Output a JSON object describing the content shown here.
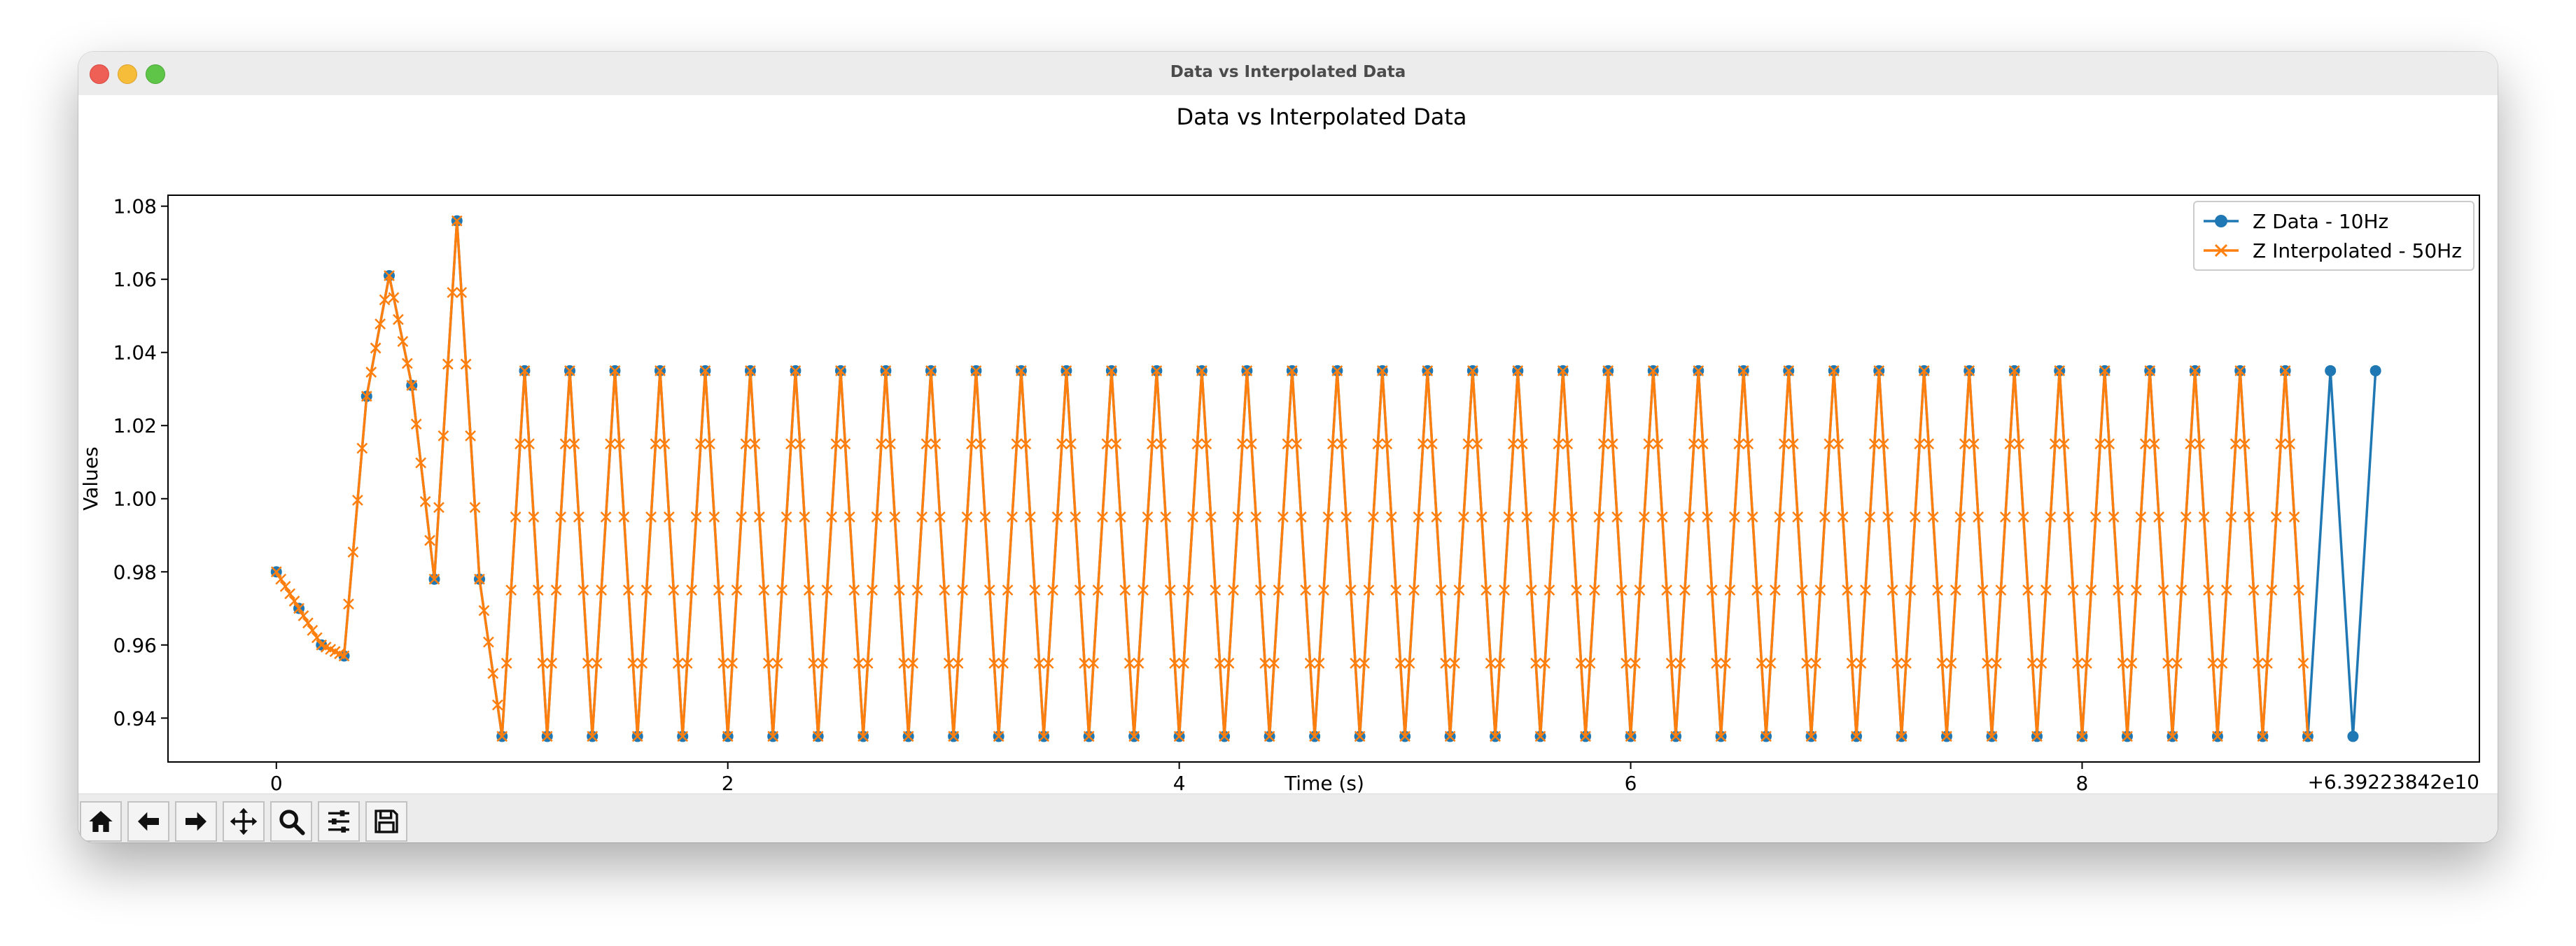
{
  "window": {
    "title": "Data vs Interpolated Data"
  },
  "toolbar": {
    "buttons": [
      {
        "name": "home-button",
        "icon": "home-icon"
      },
      {
        "name": "back-button",
        "icon": "arrow-left-icon"
      },
      {
        "name": "forward-button",
        "icon": "arrow-right-icon"
      },
      {
        "name": "pan-button",
        "icon": "move-icon"
      },
      {
        "name": "zoom-button",
        "icon": "magnifier-icon"
      },
      {
        "name": "configure-subplots-button",
        "icon": "sliders-icon"
      },
      {
        "name": "save-button",
        "icon": "floppy-disk-icon"
      }
    ]
  },
  "chart_data": {
    "type": "line",
    "title": "Data vs Interpolated Data",
    "xlabel": "Time (s)",
    "ylabel": "Values",
    "offset_text": "+6.39223842e10",
    "xlim": [
      -0.48,
      9.76
    ],
    "ylim": [
      0.928,
      1.083
    ],
    "xticks": [
      0,
      2,
      4,
      6,
      8
    ],
    "xtick_labels": [
      "0",
      "2",
      "4",
      "6",
      "8"
    ],
    "yticks": [
      0.94,
      0.96,
      0.98,
      1.0,
      1.02,
      1.04,
      1.06,
      1.08
    ],
    "ytick_labels": [
      "0.94",
      "0.96",
      "0.98",
      "1.00",
      "1.02",
      "1.04",
      "1.06",
      "1.08"
    ],
    "grid": false,
    "legend_position": "upper right",
    "colors": {
      "data": "#1f77b4",
      "interp": "#ff7f0e"
    },
    "series": [
      {
        "name": "Z Data - 10Hz",
        "marker": "o",
        "x_start": 0,
        "x_step": 0.1,
        "values": [
          0.98,
          0.97,
          0.96,
          0.957,
          1.028,
          1.061,
          1.031,
          0.978,
          1.076,
          0.978,
          0.935,
          1.035,
          0.935,
          1.035,
          0.935,
          1.035,
          0.935,
          1.035,
          0.935,
          1.035,
          0.935,
          1.035,
          0.935,
          1.035,
          0.935,
          1.035,
          0.935,
          1.035,
          0.935,
          1.035,
          0.935,
          1.035,
          0.935,
          1.035,
          0.935,
          1.035,
          0.935,
          1.035,
          0.935,
          1.035,
          0.935,
          1.035,
          0.935,
          1.035,
          0.935,
          1.035,
          0.935,
          1.035,
          0.935,
          1.035,
          0.935,
          1.035,
          0.935,
          1.035,
          0.935,
          1.035,
          0.935,
          1.035,
          0.935,
          1.035,
          0.935,
          1.035,
          0.935,
          1.035,
          0.935,
          1.035,
          0.935,
          1.035,
          0.935,
          1.035,
          0.935,
          1.035,
          0.935,
          1.035,
          0.935,
          1.035,
          0.935,
          1.035,
          0.935,
          1.035,
          0.935,
          1.035,
          0.935,
          1.035,
          0.935,
          1.035,
          0.935,
          1.035,
          0.935,
          1.035,
          0.935,
          1.035,
          0.935,
          1.035
        ]
      },
      {
        "name": "Z Interpolated - 50Hz",
        "marker": "x",
        "x_start": 0,
        "x_step": 0.02,
        "x_end": 9.0,
        "interpolation": "linear between Z Data samples"
      }
    ]
  }
}
